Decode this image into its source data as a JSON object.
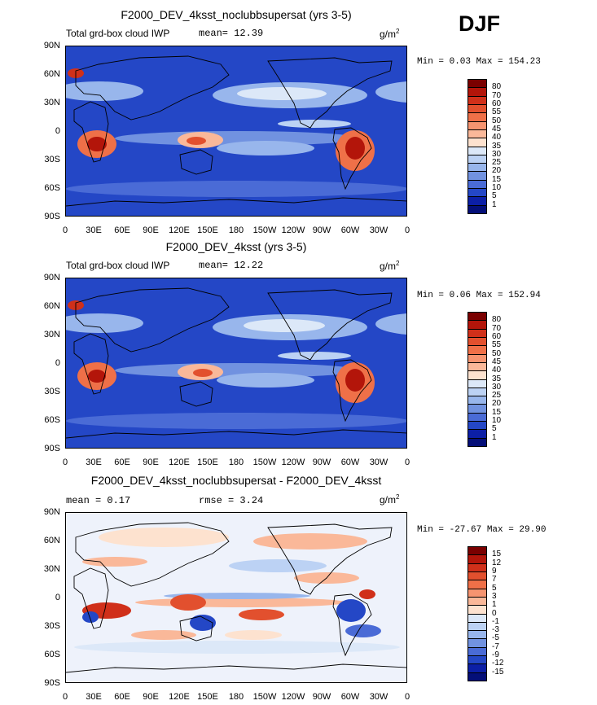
{
  "season": "DJF",
  "panels": [
    {
      "title": "F2000_DEV_4ksst_noclubbsupersat (yrs 3-5)",
      "left_label": "Total grd-box cloud IWP",
      "center_label": "mean=  12.39",
      "right_label_base": "g/m",
      "right_label_sup": "2",
      "min_max": "Min =   0.03 Max = 154.23",
      "kind": "abs"
    },
    {
      "title": "F2000_DEV_4ksst (yrs 3-5)",
      "left_label": "Total grd-box cloud IWP",
      "center_label": "mean=  12.22",
      "right_label_base": "g/m",
      "right_label_sup": "2",
      "min_max": "Min =   0.06 Max = 152.94",
      "kind": "abs"
    },
    {
      "title": "F2000_DEV_4ksst_noclubbsupersat - F2000_DEV_4ksst",
      "left_label": "mean =   0.17",
      "center_label": "rmse =   3.24",
      "right_label_base": "g/m",
      "right_label_sup": "2",
      "min_max": "Min = -27.67 Max =  29.90",
      "kind": "diff"
    }
  ],
  "axes": {
    "lat_ticks": [
      "90N",
      "60N",
      "30N",
      "0",
      "30S",
      "60S",
      "90S"
    ],
    "lon_ticks": [
      "0",
      "30E",
      "60E",
      "90E",
      "120E",
      "150E",
      "180",
      "150W",
      "120W",
      "90W",
      "60W",
      "30W",
      "0"
    ]
  },
  "colorbars": {
    "abs": {
      "levels": [
        "80",
        "70",
        "60",
        "55",
        "50",
        "45",
        "40",
        "35",
        "30",
        "25",
        "20",
        "15",
        "10",
        "5",
        "1"
      ],
      "colors": [
        "#7a0000",
        "#b3150a",
        "#d0301a",
        "#e2502e",
        "#ef7048",
        "#f69470",
        "#fab899",
        "#fde2cf",
        "#dce8f8",
        "#bcd2f4",
        "#98b6ec",
        "#7192e0",
        "#4a6bd6",
        "#2447c6",
        "#0c1fa6",
        "#040f78"
      ]
    },
    "diff": {
      "levels": [
        "15",
        "12",
        "9",
        "7",
        "5",
        "3",
        "1",
        "0",
        "-1",
        "-3",
        "-5",
        "-7",
        "-9",
        "-12",
        "-15"
      ],
      "colors": [
        "#7a0000",
        "#b3150a",
        "#d0301a",
        "#e2502e",
        "#ef7048",
        "#f69470",
        "#fab899",
        "#fde2cf",
        "#dce8f8",
        "#bcd2f4",
        "#98b6ec",
        "#7192e0",
        "#4a6bd6",
        "#2447c6",
        "#0c1fa6",
        "#040f78"
      ]
    }
  },
  "chart_data": [
    {
      "type": "heatmap",
      "title": "F2000_DEV_4ksst_noclubbsupersat (yrs 3-5)",
      "variable": "Total grd-box cloud IWP",
      "units": "g/m2",
      "mean": 12.39,
      "min": 0.03,
      "max": 154.23,
      "x_range": [
        0,
        360
      ],
      "y_range": [
        -90,
        90
      ],
      "contour_levels": [
        1,
        5,
        10,
        15,
        20,
        25,
        30,
        35,
        40,
        45,
        50,
        55,
        60,
        70,
        80
      ]
    },
    {
      "type": "heatmap",
      "title": "F2000_DEV_4ksst (yrs 3-5)",
      "variable": "Total grd-box cloud IWP",
      "units": "g/m2",
      "mean": 12.22,
      "min": 0.06,
      "max": 152.94,
      "x_range": [
        0,
        360
      ],
      "y_range": [
        -90,
        90
      ],
      "contour_levels": [
        1,
        5,
        10,
        15,
        20,
        25,
        30,
        35,
        40,
        45,
        50,
        55,
        60,
        70,
        80
      ]
    },
    {
      "type": "heatmap",
      "title": "F2000_DEV_4ksst_noclubbsupersat - F2000_DEV_4ksst",
      "units": "g/m2",
      "mean": 0.17,
      "rmse": 3.24,
      "min": -27.67,
      "max": 29.9,
      "x_range": [
        0,
        360
      ],
      "y_range": [
        -90,
        90
      ],
      "contour_levels": [
        -15,
        -12,
        -9,
        -7,
        -5,
        -3,
        -1,
        0,
        1,
        3,
        5,
        7,
        9,
        12,
        15
      ]
    }
  ]
}
